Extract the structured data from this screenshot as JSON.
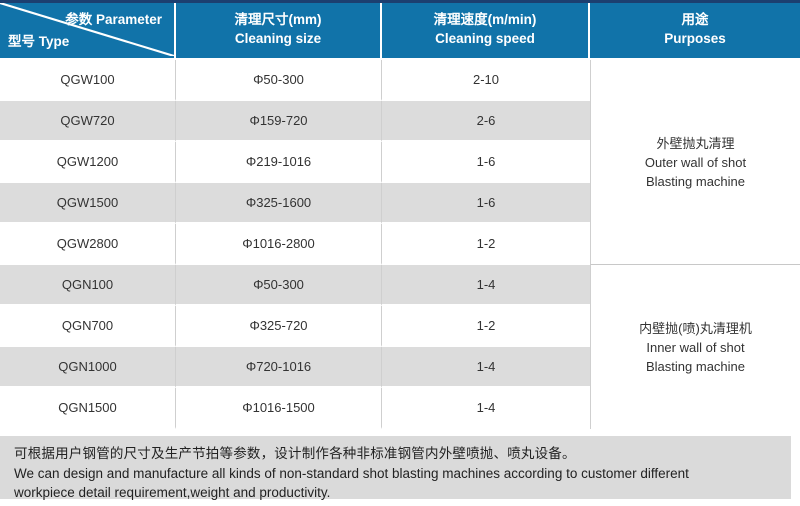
{
  "table": {
    "header": {
      "corner_top_right": "参数 Parameter",
      "corner_bottom_left": "型号 Type",
      "col_size_zh": "清理尺寸(mm)",
      "col_size_en": "Cleaning size",
      "col_speed_zh": "清理速度(m/min)",
      "col_speed_en": "Cleaning speed",
      "col_purpose_zh": "用途",
      "col_purpose_en": "Purposes"
    },
    "rows": [
      {
        "model": "QGW100",
        "size": "Φ50-300",
        "speed": "2-10"
      },
      {
        "model": "QGW720",
        "size": "Φ159-720",
        "speed": "2-6"
      },
      {
        "model": "QGW1200",
        "size": "Φ219-1016",
        "speed": "1-6"
      },
      {
        "model": "QGW1500",
        "size": "Φ325-1600",
        "speed": "1-6"
      },
      {
        "model": "QGW2800",
        "size": "Φ1016-2800",
        "speed": "1-2"
      },
      {
        "model": "QGN100",
        "size": "Φ50-300",
        "speed": "1-4"
      },
      {
        "model": "QGN700",
        "size": "Φ325-720",
        "speed": "1-2"
      },
      {
        "model": "QGN1000",
        "size": "Φ720-1016",
        "speed": "1-4"
      },
      {
        "model": "QGN1500",
        "size": "Φ1016-1500",
        "speed": "1-4"
      }
    ],
    "purposes": [
      {
        "zh": "外壁抛丸清理",
        "en1": "Outer wall of shot",
        "en2": "Blasting machine"
      },
      {
        "zh": "内壁抛(喷)丸清理机",
        "en1": "Inner wall of shot",
        "en2": "Blasting machine"
      }
    ]
  },
  "footer": {
    "zh": "可根据用户钢管的尺寸及生产节拍等参数，设计制作各种非标准钢管内外壁喷抛、喷丸设备。",
    "en_line1": "We can design and manufacture all kinds of non-standard shot blasting machines according to customer different",
    "en_line2": "workpiece detail requirement,weight and productivity."
  },
  "colors": {
    "header_blue": "#1173a9",
    "top_strip_navy": "#1c3f70",
    "stripe_gray": "#dcdcdc",
    "footer_gray": "#dadada",
    "separator_gray": "#cfcfcf",
    "text_dark": "#333333"
  }
}
